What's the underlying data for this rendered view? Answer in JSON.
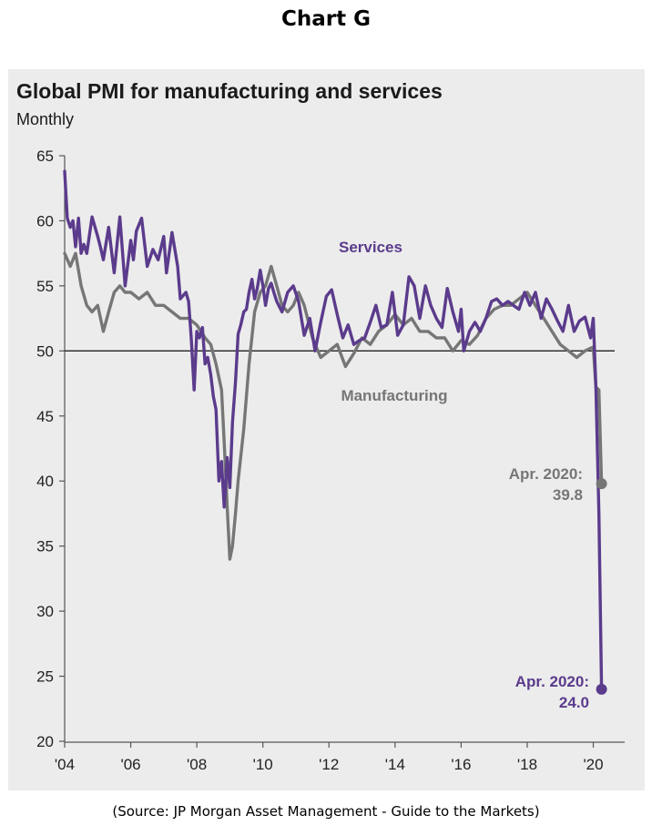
{
  "page": {
    "heading": "Chart G",
    "source": "(Source:  JP Morgan Asset Management - Guide to the Markets)"
  },
  "chart_data": {
    "type": "line",
    "title": "Global PMI for manufacturing and services",
    "subtitle": "Monthly",
    "xlabel": "",
    "ylabel": "",
    "xlim": [
      2004.0,
      2020.95
    ],
    "ylim": [
      20,
      65
    ],
    "yticks": [
      20,
      25,
      30,
      35,
      40,
      45,
      50,
      55,
      60,
      65
    ],
    "xticks": [
      {
        "value": 2004,
        "label": "'04"
      },
      {
        "value": 2006,
        "label": "'06"
      },
      {
        "value": 2008,
        "label": "'08"
      },
      {
        "value": 2010,
        "label": "'10"
      },
      {
        "value": 2012,
        "label": "'12"
      },
      {
        "value": 2014,
        "label": "'14"
      },
      {
        "value": 2016,
        "label": "'16"
      },
      {
        "value": 2018,
        "label": "'18"
      },
      {
        "value": 2020,
        "label": "'20"
      }
    ],
    "reference_line": 50,
    "grid": false,
    "colors": {
      "services": "#5b3b8c",
      "manufacturing": "#767676"
    },
    "series": [
      {
        "name": "Services",
        "color": "#5b3b8c",
        "x": [
          2004.0,
          2004.08,
          2004.17,
          2004.25,
          2004.33,
          2004.42,
          2004.5,
          2004.58,
          2004.67,
          2004.83,
          2005.0,
          2005.08,
          2005.17,
          2005.33,
          2005.5,
          2005.67,
          2005.83,
          2006.0,
          2006.08,
          2006.17,
          2006.33,
          2006.5,
          2006.67,
          2006.83,
          2007.0,
          2007.08,
          2007.25,
          2007.42,
          2007.5,
          2007.67,
          2007.75,
          2007.83,
          2007.92,
          2008.0,
          2008.08,
          2008.17,
          2008.25,
          2008.33,
          2008.42,
          2008.5,
          2008.58,
          2008.67,
          2008.75,
          2008.83,
          2008.92,
          2009.0,
          2009.08,
          2009.17,
          2009.25,
          2009.33,
          2009.42,
          2009.5,
          2009.58,
          2009.67,
          2009.75,
          2009.83,
          2009.92,
          2010.0,
          2010.08,
          2010.17,
          2010.25,
          2010.33,
          2010.42,
          2010.58,
          2010.75,
          2010.92,
          2011.08,
          2011.25,
          2011.42,
          2011.58,
          2011.75,
          2011.92,
          2012.08,
          2012.25,
          2012.42,
          2012.58,
          2012.75,
          2012.92,
          2013.08,
          2013.25,
          2013.42,
          2013.58,
          2013.75,
          2013.92,
          2014.08,
          2014.25,
          2014.42,
          2014.58,
          2014.75,
          2014.92,
          2015.08,
          2015.25,
          2015.42,
          2015.58,
          2015.75,
          2015.92,
          2016.0,
          2016.08,
          2016.25,
          2016.42,
          2016.58,
          2016.75,
          2016.92,
          2017.08,
          2017.25,
          2017.42,
          2017.58,
          2017.75,
          2017.92,
          2018.08,
          2018.25,
          2018.42,
          2018.58,
          2018.75,
          2018.92,
          2019.08,
          2019.25,
          2019.42,
          2019.58,
          2019.75,
          2019.92,
          2020.0,
          2020.08,
          2020.17,
          2020.25
        ],
        "values": [
          63.8,
          60.2,
          59.5,
          60.0,
          58.0,
          60.2,
          57.5,
          58.2,
          57.5,
          60.3,
          58.8,
          58.0,
          57.0,
          59.5,
          56.0,
          60.3,
          55.0,
          58.5,
          57.0,
          59.2,
          60.2,
          56.5,
          57.8,
          57.0,
          58.8,
          56.0,
          59.1,
          56.5,
          54.0,
          54.5,
          53.8,
          51.0,
          47.0,
          51.5,
          51.0,
          51.8,
          49.0,
          49.5,
          48.2,
          46.5,
          45.5,
          40.0,
          41.5,
          38.0,
          41.8,
          39.5,
          44.5,
          47.6,
          51.3,
          52.0,
          53.0,
          53.2,
          54.5,
          55.5,
          54.0,
          54.8,
          56.2,
          55.0,
          53.5,
          54.8,
          55.2,
          54.5,
          53.8,
          53.0,
          54.5,
          55.0,
          53.8,
          51.2,
          52.5,
          50.0,
          52.2,
          54.2,
          54.7,
          52.8,
          51.0,
          52.0,
          50.5,
          50.8,
          51.0,
          52.2,
          53.5,
          51.8,
          52.0,
          54.5,
          51.2,
          52.0,
          55.7,
          55.0,
          52.5,
          55.0,
          53.5,
          52.5,
          51.8,
          54.8,
          53.0,
          51.5,
          53.2,
          50.0,
          51.5,
          52.2,
          51.5,
          52.5,
          53.8,
          54.0,
          53.5,
          53.8,
          53.5,
          53.2,
          54.5,
          53.5,
          54.5,
          52.5,
          54.0,
          53.2,
          52.3,
          51.5,
          53.5,
          51.5,
          52.3,
          52.6,
          51.0,
          52.5,
          47.2,
          37.5,
          24.0
        ]
      },
      {
        "name": "Manufacturing",
        "color": "#767676",
        "x": [
          2004.0,
          2004.17,
          2004.33,
          2004.5,
          2004.67,
          2004.83,
          2005.0,
          2005.17,
          2005.33,
          2005.5,
          2005.67,
          2005.83,
          2006.0,
          2006.25,
          2006.5,
          2006.75,
          2007.0,
          2007.25,
          2007.5,
          2007.75,
          2008.0,
          2008.25,
          2008.42,
          2008.58,
          2008.75,
          2008.83,
          2008.92,
          2009.0,
          2009.08,
          2009.17,
          2009.25,
          2009.42,
          2009.58,
          2009.75,
          2009.92,
          2010.08,
          2010.25,
          2010.42,
          2010.58,
          2010.75,
          2010.92,
          2011.08,
          2011.25,
          2011.5,
          2011.75,
          2012.0,
          2012.25,
          2012.5,
          2012.75,
          2013.0,
          2013.25,
          2013.5,
          2013.75,
          2014.0,
          2014.25,
          2014.5,
          2014.75,
          2015.0,
          2015.25,
          2015.5,
          2015.75,
          2016.0,
          2016.25,
          2016.5,
          2016.75,
          2017.0,
          2017.25,
          2017.5,
          2017.75,
          2018.0,
          2018.25,
          2018.5,
          2018.75,
          2019.0,
          2019.25,
          2019.5,
          2019.75,
          2020.0,
          2020.08,
          2020.17,
          2020.25
        ],
        "values": [
          57.5,
          56.5,
          57.5,
          55.0,
          53.5,
          53.0,
          53.5,
          51.5,
          53.0,
          54.5,
          55.0,
          54.5,
          54.5,
          54.0,
          54.5,
          53.5,
          53.5,
          53.0,
          52.5,
          52.5,
          52.0,
          51.0,
          50.5,
          49.0,
          47.0,
          43.0,
          38.0,
          34.0,
          35.0,
          37.5,
          40.0,
          44.0,
          49.0,
          53.0,
          54.5,
          55.0,
          56.5,
          55.0,
          53.5,
          53.0,
          53.5,
          54.5,
          53.5,
          51.0,
          49.5,
          50.0,
          50.5,
          48.8,
          49.8,
          51.0,
          50.5,
          51.5,
          52.0,
          52.8,
          52.0,
          52.5,
          51.5,
          51.5,
          51.0,
          51.0,
          50.0,
          50.8,
          50.5,
          51.2,
          52.5,
          53.2,
          53.5,
          53.5,
          54.0,
          54.5,
          53.5,
          52.5,
          51.5,
          50.5,
          50.0,
          49.5,
          50.0,
          50.3,
          47.2,
          47.0,
          39.8
        ]
      }
    ],
    "annotations": [
      {
        "text": "Services",
        "series": "Services"
      },
      {
        "text": "Manufacturing",
        "series": "Manufacturing"
      },
      {
        "text": "Apr. 2020:",
        "value_text": "39.8",
        "series": "Manufacturing",
        "x": 2020.25,
        "y": 39.8
      },
      {
        "text": "Apr. 2020:",
        "value_text": "24.0",
        "series": "Services",
        "x": 2020.25,
        "y": 24.0
      }
    ]
  }
}
